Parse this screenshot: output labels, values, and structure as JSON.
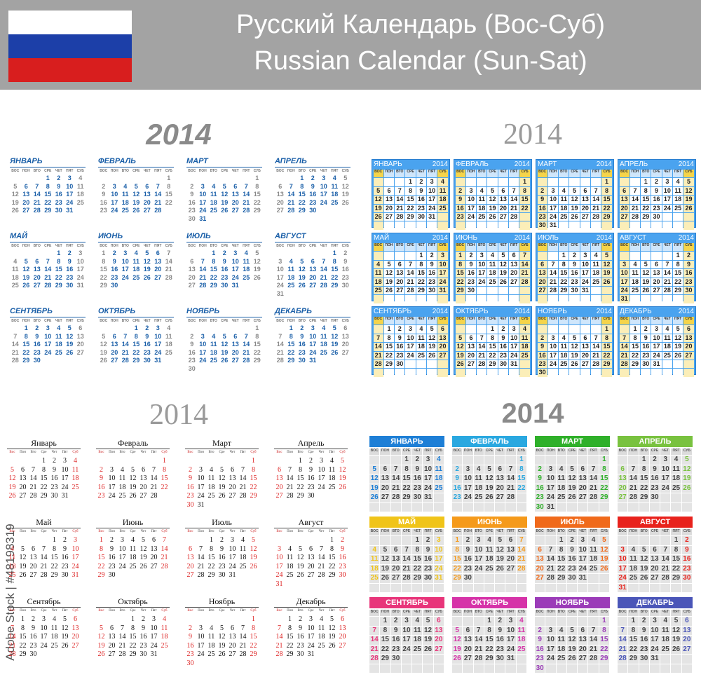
{
  "header": {
    "title_ru": "Русский Календарь (Вос-Суб)",
    "title_en": "Russian Calendar (Sun-Sat)"
  },
  "year": 2014,
  "weekdays": [
    "ВОС",
    "ПОН",
    "ВТО",
    "СРЕ",
    "ЧЕТ",
    "ПЯТ",
    "СУБ"
  ],
  "weekdays_title": [
    "Вос",
    "Пон",
    "Вто",
    "Сре",
    "Чет",
    "Пят",
    "Суб"
  ],
  "months": [
    {
      "name": "ЯНВАРЬ",
      "name_title": "Январь",
      "color": "#1e7fd6",
      "weeks": [
        [
          null,
          null,
          null,
          1,
          2,
          3,
          4
        ],
        [
          5,
          6,
          7,
          8,
          9,
          10,
          11
        ],
        [
          12,
          13,
          14,
          15,
          16,
          17,
          18
        ],
        [
          19,
          20,
          21,
          22,
          23,
          24,
          25
        ],
        [
          26,
          27,
          28,
          29,
          30,
          31,
          null
        ]
      ]
    },
    {
      "name": "ФЕВРАЛЬ",
      "name_title": "Февраль",
      "color": "#2aa8e0",
      "weeks": [
        [
          null,
          null,
          null,
          null,
          null,
          null,
          1
        ],
        [
          2,
          3,
          4,
          5,
          6,
          7,
          8
        ],
        [
          9,
          10,
          11,
          12,
          13,
          14,
          15
        ],
        [
          16,
          17,
          18,
          19,
          20,
          21,
          22
        ],
        [
          23,
          24,
          25,
          26,
          27,
          28,
          null
        ]
      ]
    },
    {
      "name": "МАРТ",
      "name_title": "Март",
      "color": "#2fb02a",
      "weeks": [
        [
          null,
          null,
          null,
          null,
          null,
          null,
          1
        ],
        [
          2,
          3,
          4,
          5,
          6,
          7,
          8
        ],
        [
          9,
          10,
          11,
          12,
          13,
          14,
          15
        ],
        [
          16,
          17,
          18,
          19,
          20,
          21,
          22
        ],
        [
          23,
          24,
          25,
          26,
          27,
          28,
          29
        ],
        [
          30,
          31,
          null,
          null,
          null,
          null,
          null
        ]
      ]
    },
    {
      "name": "АПРЕЛЬ",
      "name_title": "Апрель",
      "color": "#79c23f",
      "weeks": [
        [
          null,
          null,
          1,
          2,
          3,
          4,
          5
        ],
        [
          6,
          7,
          8,
          9,
          10,
          11,
          12
        ],
        [
          13,
          14,
          15,
          16,
          17,
          18,
          19
        ],
        [
          20,
          21,
          22,
          23,
          24,
          25,
          26
        ],
        [
          27,
          28,
          29,
          30,
          null,
          null,
          null
        ]
      ]
    },
    {
      "name": "МАЙ",
      "name_title": "Май",
      "color": "#f0c419",
      "weeks": [
        [
          null,
          null,
          null,
          null,
          1,
          2,
          3
        ],
        [
          4,
          5,
          6,
          7,
          8,
          9,
          10
        ],
        [
          11,
          12,
          13,
          14,
          15,
          16,
          17
        ],
        [
          18,
          19,
          20,
          21,
          22,
          23,
          24
        ],
        [
          25,
          26,
          27,
          28,
          29,
          30,
          31
        ]
      ]
    },
    {
      "name": "ИЮНЬ",
      "name_title": "Июнь",
      "color": "#f59a1b",
      "weeks": [
        [
          1,
          2,
          3,
          4,
          5,
          6,
          7
        ],
        [
          8,
          9,
          10,
          11,
          12,
          13,
          14
        ],
        [
          15,
          16,
          17,
          18,
          19,
          20,
          21
        ],
        [
          22,
          23,
          24,
          25,
          26,
          27,
          28
        ],
        [
          29,
          30,
          null,
          null,
          null,
          null,
          null
        ]
      ]
    },
    {
      "name": "ИЮЛЬ",
      "name_title": "Июль",
      "color": "#f06a1b",
      "weeks": [
        [
          null,
          null,
          1,
          2,
          3,
          4,
          5
        ],
        [
          6,
          7,
          8,
          9,
          10,
          11,
          12
        ],
        [
          13,
          14,
          15,
          16,
          17,
          18,
          19
        ],
        [
          20,
          21,
          22,
          23,
          24,
          25,
          26
        ],
        [
          27,
          28,
          29,
          30,
          31,
          null,
          null
        ]
      ]
    },
    {
      "name": "АВГУСТ",
      "name_title": "Август",
      "color": "#e8221c",
      "weeks": [
        [
          null,
          null,
          null,
          null,
          null,
          1,
          2
        ],
        [
          3,
          4,
          5,
          6,
          7,
          8,
          9
        ],
        [
          10,
          11,
          12,
          13,
          14,
          15,
          16
        ],
        [
          17,
          18,
          19,
          20,
          21,
          22,
          23
        ],
        [
          24,
          25,
          26,
          27,
          28,
          29,
          30
        ],
        [
          31,
          null,
          null,
          null,
          null,
          null,
          null
        ]
      ]
    },
    {
      "name": "СЕНТЯБРЬ",
      "name_title": "Сентябрь",
      "color": "#e8357a",
      "weeks": [
        [
          null,
          1,
          2,
          3,
          4,
          5,
          6
        ],
        [
          7,
          8,
          9,
          10,
          11,
          12,
          13
        ],
        [
          14,
          15,
          16,
          17,
          18,
          19,
          20
        ],
        [
          21,
          22,
          23,
          24,
          25,
          26,
          27
        ],
        [
          28,
          29,
          30,
          null,
          null,
          null,
          null
        ]
      ]
    },
    {
      "name": "ОКТЯБРЬ",
      "name_title": "Октябрь",
      "color": "#d633a8",
      "weeks": [
        [
          null,
          null,
          null,
          1,
          2,
          3,
          4
        ],
        [
          5,
          6,
          7,
          8,
          9,
          10,
          11
        ],
        [
          12,
          13,
          14,
          15,
          16,
          17,
          18
        ],
        [
          19,
          20,
          21,
          22,
          23,
          24,
          25
        ],
        [
          26,
          27,
          28,
          29,
          30,
          31,
          null
        ]
      ]
    },
    {
      "name": "НОЯБРЬ",
      "name_title": "Ноябрь",
      "color": "#9b3bb8",
      "weeks": [
        [
          null,
          null,
          null,
          null,
          null,
          null,
          1
        ],
        [
          2,
          3,
          4,
          5,
          6,
          7,
          8
        ],
        [
          9,
          10,
          11,
          12,
          13,
          14,
          15
        ],
        [
          16,
          17,
          18,
          19,
          20,
          21,
          22
        ],
        [
          23,
          24,
          25,
          26,
          27,
          28,
          29
        ],
        [
          30,
          null,
          null,
          null,
          null,
          null,
          null
        ]
      ]
    },
    {
      "name": "ДЕКАБРЬ",
      "name_title": "Декабрь",
      "color": "#4a55b8",
      "weeks": [
        [
          null,
          1,
          2,
          3,
          4,
          5,
          6
        ],
        [
          7,
          8,
          9,
          10,
          11,
          12,
          13
        ],
        [
          14,
          15,
          16,
          17,
          18,
          19,
          20
        ],
        [
          21,
          22,
          23,
          24,
          25,
          26,
          27
        ],
        [
          28,
          29,
          30,
          31,
          null,
          null,
          null
        ]
      ]
    }
  ],
  "watermark": "Adobe Stock | #48198319"
}
